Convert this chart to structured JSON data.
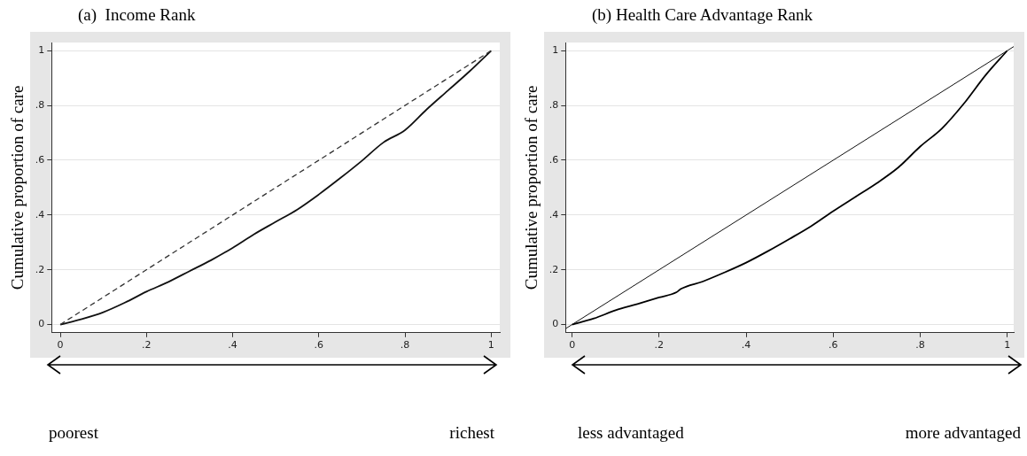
{
  "chart_data": [
    {
      "type": "line",
      "title": "(a)  Income Rank",
      "ylabel": "Cumulative proportion of care",
      "series": [
        {
          "color": "#333333",
          "line_style": "dashed",
          "x": [
            0,
            1
          ],
          "values": [
            0,
            1
          ]
        },
        {
          "color": "#111111",
          "line_style": "solid",
          "x": [
            0,
            0.05,
            0.1,
            0.15,
            0.2,
            0.25,
            0.3,
            0.35,
            0.4,
            0.45,
            0.5,
            0.55,
            0.6,
            0.65,
            0.7,
            0.75,
            0.8,
            0.85,
            0.9,
            0.95,
            1
          ],
          "values": [
            0,
            0.02,
            0.045,
            0.08,
            0.12,
            0.155,
            0.195,
            0.235,
            0.28,
            0.33,
            0.375,
            0.42,
            0.475,
            0.535,
            0.598,
            0.665,
            0.71,
            0.785,
            0.855,
            0.925,
            1
          ]
        }
      ],
      "xlim": [
        -0.02,
        1.02
      ],
      "ylim": [
        -0.03,
        1.03
      ],
      "xticks": [
        {
          "value": 0,
          "label": "0"
        },
        {
          "value": 0.2,
          "label": ".2"
        },
        {
          "value": 0.4,
          "label": ".4"
        },
        {
          "value": 0.6,
          "label": ".6"
        },
        {
          "value": 0.8,
          "label": ".8"
        },
        {
          "value": 1,
          "label": "1"
        }
      ],
      "yticks": [
        {
          "value": 0,
          "label": "0"
        },
        {
          "value": 0.2,
          "label": ".2"
        },
        {
          "value": 0.4,
          "label": ".4"
        },
        {
          "value": 0.6,
          "label": ".6"
        },
        {
          "value": 0.8,
          "label": ".8"
        },
        {
          "value": 1,
          "label": "1"
        }
      ],
      "grid": "y",
      "legend": false,
      "marker": "none",
      "annotations": [
        "poorest",
        "richest"
      ]
    },
    {
      "type": "line",
      "title": "(b) Health Care Advantage Rank",
      "ylabel": "Cumulative proportion of care",
      "series": [
        {
          "color": "#111111",
          "line_style": "solid",
          "x": [
            -0.015,
            1.015
          ],
          "values": [
            -0.015,
            1.015
          ]
        },
        {
          "color": "#000000",
          "line_style": "solid",
          "x": [
            0,
            0.05,
            0.1,
            0.15,
            0.2,
            0.24,
            0.25,
            0.3,
            0.35,
            0.4,
            0.45,
            0.5,
            0.55,
            0.6,
            0.65,
            0.7,
            0.75,
            0.8,
            0.85,
            0.9,
            0.95,
            1
          ],
          "values": [
            0,
            0.022,
            0.052,
            0.075,
            0.099,
            0.118,
            0.13,
            0.157,
            0.19,
            0.226,
            0.268,
            0.313,
            0.36,
            0.414,
            0.465,
            0.516,
            0.574,
            0.65,
            0.716,
            0.806,
            0.91,
            1
          ]
        }
      ],
      "xlim": [
        -0.015,
        1.015
      ],
      "ylim": [
        -0.03,
        1.03
      ],
      "xticks": [
        {
          "value": 0,
          "label": "0"
        },
        {
          "value": 0.2,
          "label": ".2"
        },
        {
          "value": 0.4,
          "label": ".4"
        },
        {
          "value": 0.6,
          "label": ".6"
        },
        {
          "value": 0.8,
          "label": ".8"
        },
        {
          "value": 1,
          "label": "1"
        }
      ],
      "yticks": [
        {
          "value": 0,
          "label": "0"
        },
        {
          "value": 0.2,
          "label": ".2"
        },
        {
          "value": 0.4,
          "label": ".4"
        },
        {
          "value": 0.6,
          "label": ".6"
        },
        {
          "value": 0.8,
          "label": ".8"
        },
        {
          "value": 1,
          "label": "1"
        }
      ],
      "grid": "y",
      "legend": false,
      "marker": "none",
      "annotations": [
        "less advantaged",
        "more advantaged"
      ]
    }
  ]
}
